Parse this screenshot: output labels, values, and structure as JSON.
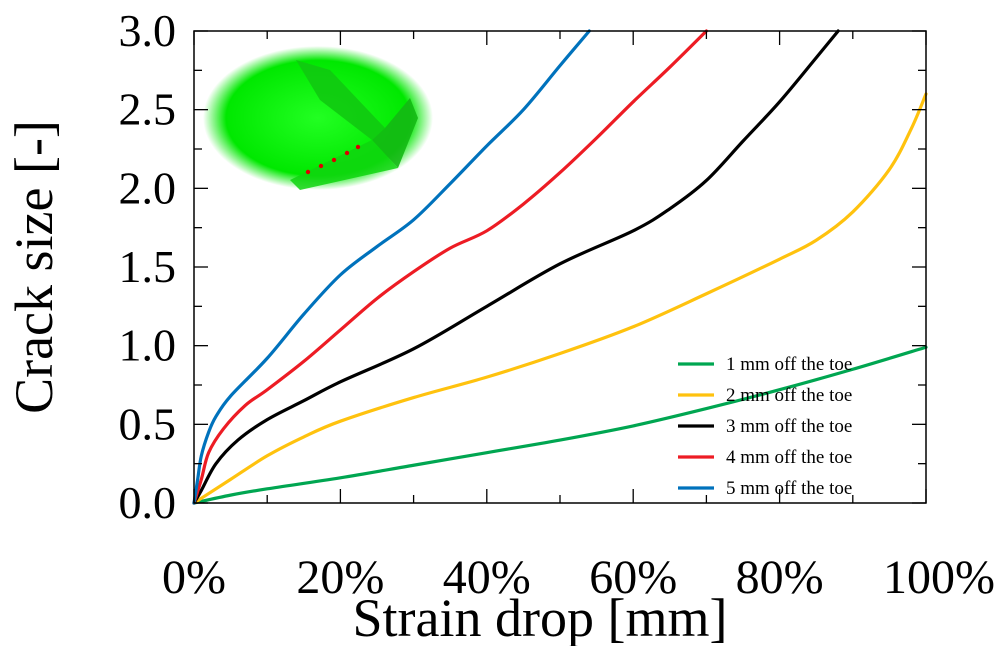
{
  "chart_data": {
    "type": "line",
    "xlabel": "Strain drop [mm]",
    "ylabel": "Crack size [-]",
    "xlim": [
      0,
      1.0
    ],
    "ylim": [
      0,
      3.0
    ],
    "x_ticks": [
      0,
      0.2,
      0.4,
      0.6,
      0.8,
      1.0
    ],
    "x_tick_labels": [
      "0%",
      "20%",
      "40%",
      "60%",
      "80%",
      "100%"
    ],
    "y_ticks": [
      0,
      0.5,
      1.0,
      1.5,
      2.0,
      2.5,
      3.0
    ],
    "y_tick_labels": [
      "0.0",
      "0.5",
      "1.0",
      "1.5",
      "2.0",
      "2.5",
      "3.0"
    ],
    "grid": false,
    "legend_position": "bottom-right",
    "inset": "green-weld-model-image",
    "series": [
      {
        "name": "1 mm off the toe",
        "color": "#00a651",
        "points": [
          [
            0,
            0
          ],
          [
            0.05,
            0.05
          ],
          [
            0.1,
            0.09
          ],
          [
            0.2,
            0.16
          ],
          [
            0.3,
            0.24
          ],
          [
            0.4,
            0.32
          ],
          [
            0.5,
            0.4
          ],
          [
            0.6,
            0.49
          ],
          [
            0.7,
            0.6
          ],
          [
            0.8,
            0.72
          ],
          [
            0.9,
            0.85
          ],
          [
            1.0,
            0.99
          ]
        ]
      },
      {
        "name": "2 mm off the toe",
        "color": "#ffc20e",
        "points": [
          [
            0,
            0
          ],
          [
            0.02,
            0.06
          ],
          [
            0.05,
            0.15
          ],
          [
            0.1,
            0.3
          ],
          [
            0.15,
            0.42
          ],
          [
            0.2,
            0.52
          ],
          [
            0.3,
            0.67
          ],
          [
            0.4,
            0.8
          ],
          [
            0.5,
            0.95
          ],
          [
            0.6,
            1.12
          ],
          [
            0.7,
            1.33
          ],
          [
            0.8,
            1.55
          ],
          [
            0.85,
            1.67
          ],
          [
            0.9,
            1.85
          ],
          [
            0.95,
            2.12
          ],
          [
            0.98,
            2.38
          ],
          [
            1.0,
            2.6
          ]
        ]
      },
      {
        "name": "3 mm off the toe",
        "color": "#000000",
        "points": [
          [
            0,
            0
          ],
          [
            0.01,
            0.08
          ],
          [
            0.03,
            0.25
          ],
          [
            0.06,
            0.4
          ],
          [
            0.1,
            0.53
          ],
          [
            0.15,
            0.65
          ],
          [
            0.2,
            0.77
          ],
          [
            0.3,
            0.98
          ],
          [
            0.4,
            1.25
          ],
          [
            0.5,
            1.52
          ],
          [
            0.6,
            1.73
          ],
          [
            0.65,
            1.87
          ],
          [
            0.7,
            2.05
          ],
          [
            0.75,
            2.3
          ],
          [
            0.8,
            2.55
          ],
          [
            0.85,
            2.83
          ],
          [
            0.88,
            3.0
          ]
        ]
      },
      {
        "name": "4 mm off the toe",
        "color": "#ed1c24",
        "points": [
          [
            0,
            0
          ],
          [
            0.01,
            0.15
          ],
          [
            0.02,
            0.32
          ],
          [
            0.04,
            0.47
          ],
          [
            0.07,
            0.62
          ],
          [
            0.1,
            0.72
          ],
          [
            0.15,
            0.9
          ],
          [
            0.2,
            1.1
          ],
          [
            0.25,
            1.3
          ],
          [
            0.3,
            1.47
          ],
          [
            0.35,
            1.62
          ],
          [
            0.4,
            1.73
          ],
          [
            0.45,
            1.9
          ],
          [
            0.5,
            2.1
          ],
          [
            0.55,
            2.32
          ],
          [
            0.6,
            2.55
          ],
          [
            0.65,
            2.77
          ],
          [
            0.7,
            3.0
          ]
        ]
      },
      {
        "name": "5 mm off the toe",
        "color": "#0072bc",
        "points": [
          [
            0,
            0
          ],
          [
            0.005,
            0.15
          ],
          [
            0.01,
            0.3
          ],
          [
            0.02,
            0.45
          ],
          [
            0.03,
            0.55
          ],
          [
            0.05,
            0.68
          ],
          [
            0.1,
            0.92
          ],
          [
            0.15,
            1.2
          ],
          [
            0.2,
            1.45
          ],
          [
            0.25,
            1.63
          ],
          [
            0.3,
            1.8
          ],
          [
            0.35,
            2.03
          ],
          [
            0.4,
            2.27
          ],
          [
            0.45,
            2.5
          ],
          [
            0.5,
            2.78
          ],
          [
            0.54,
            3.0
          ]
        ]
      }
    ]
  }
}
